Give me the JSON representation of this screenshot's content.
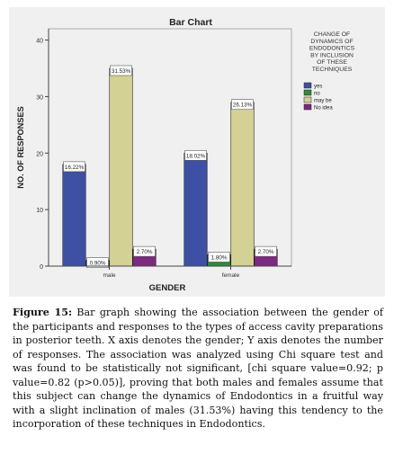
{
  "chart_data": {
    "type": "bar",
    "title": "Bar Chart",
    "xlabel": "GENDER",
    "ylabel": "NO. OF RESPONSES",
    "ylim": [
      0,
      42
    ],
    "yticks": [
      0,
      10,
      20,
      30,
      40
    ],
    "grid": false,
    "legend_placement": "top-right",
    "legend_title": "CHANGE OF DYNAMICS OF ENDODONTICS BY INCLUSION OF THESE TECHNIQUES",
    "categories": [
      "male",
      "female"
    ],
    "series": [
      {
        "name": "yes",
        "color": "#3e50a3",
        "values": [
          18,
          20
        ],
        "labels": [
          "16.22%",
          "18.02%"
        ]
      },
      {
        "name": "no",
        "color": "#2e8b3c",
        "values": [
          1,
          2
        ],
        "labels": [
          "0.90%",
          "1.80%"
        ]
      },
      {
        "name": "may be",
        "color": "#d4d194",
        "values": [
          35,
          29
        ],
        "labels": [
          "31.53%",
          "26.13%"
        ]
      },
      {
        "name": "No idea",
        "color": "#7b2a80",
        "values": [
          3,
          3
        ],
        "labels": [
          "2.70%",
          "2.70%"
        ]
      }
    ]
  },
  "caption": {
    "label": "Figure 15:",
    "text": " Bar graph showing the association between the gender of the participants and responses to the types of access cavity preparations in posterior teeth. X axis denotes the gender; Y axis denotes the number of responses. The association was analyzed using Chi square test and was found to be statistically not significant, [chi square value=0.92; p value=0.82 (p>0.05)], proving that both males and females assume that this subject can change the dynamics of Endodontics in a fruitful way with a slight inclination of males (31.53%) having this tendency to the incorporation of these techniques in Endodontics."
  }
}
